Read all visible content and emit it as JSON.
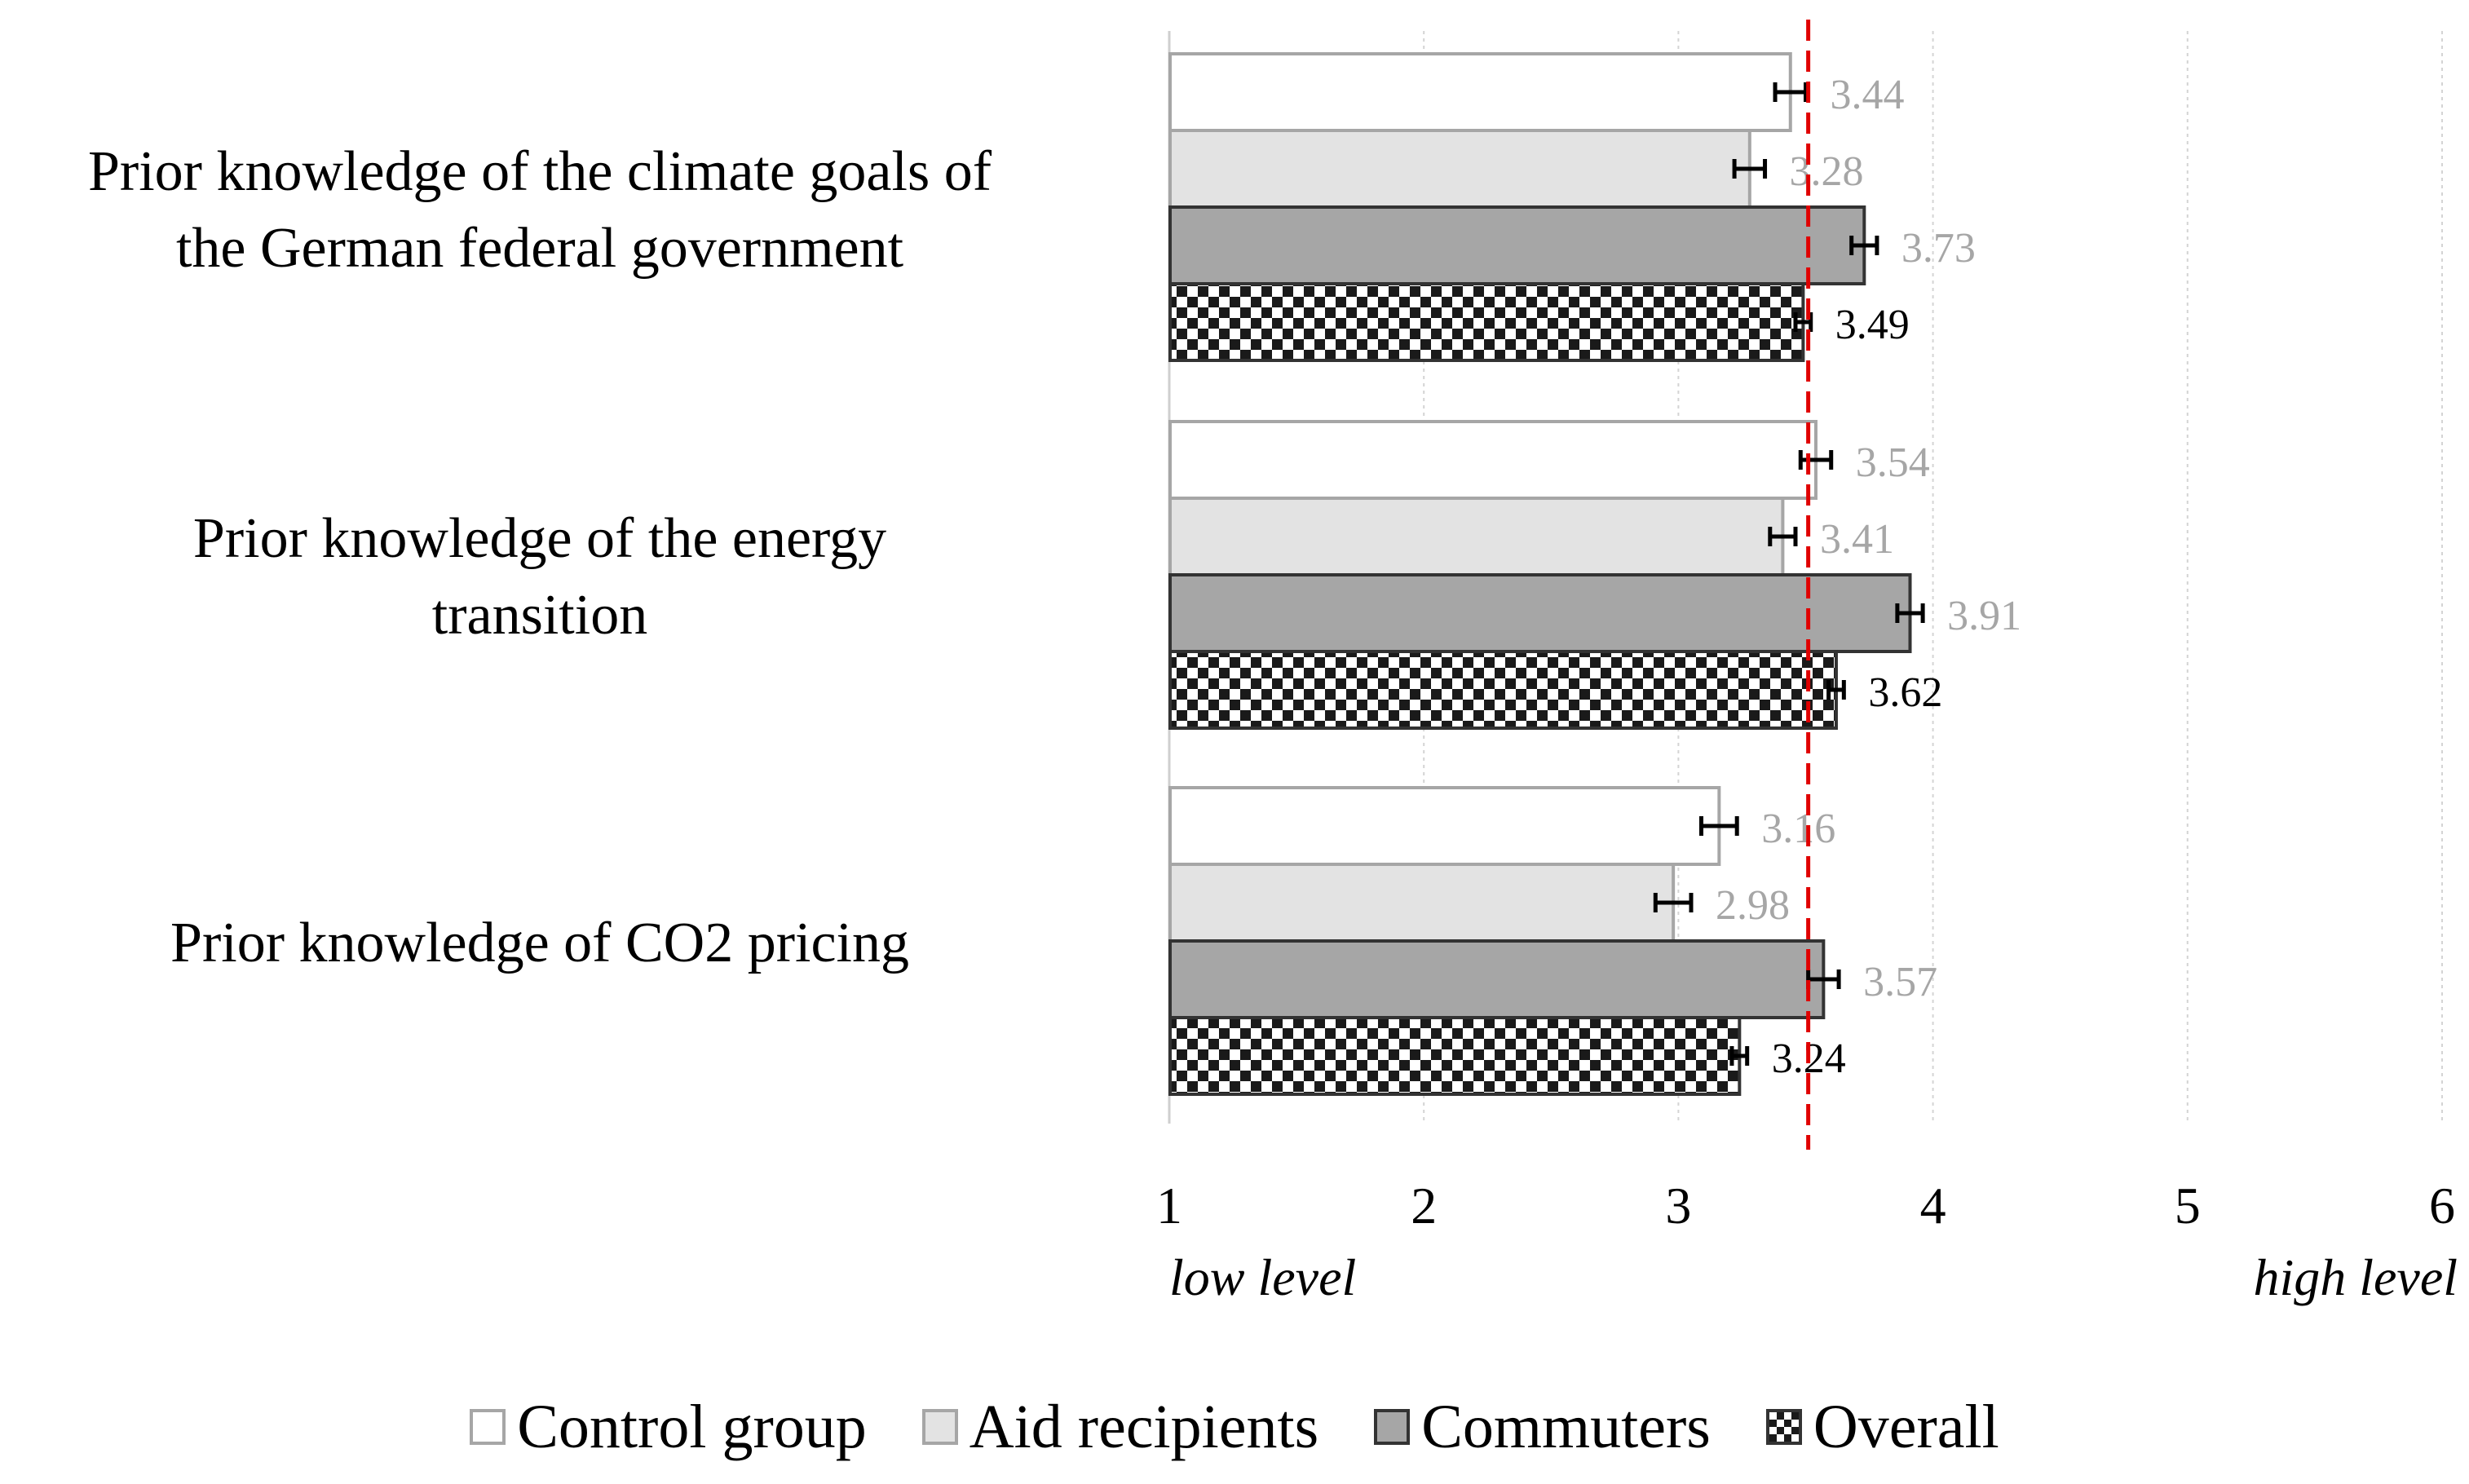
{
  "chart_data": {
    "type": "bar",
    "orientation": "horizontal",
    "categories": [
      {
        "lines": [
          "Prior knowledge of the climate goals of",
          "the German federal government"
        ]
      },
      {
        "lines": [
          "Prior knowledge of the energy",
          "transition"
        ]
      },
      {
        "lines": [
          "Prior knowledge of CO2 pricing"
        ]
      }
    ],
    "series": [
      {
        "name": "Control group",
        "fill": "#ffffff",
        "stroke": "#a6a6a6",
        "label_color": "#a6a6a6",
        "pattern": "none",
        "values": [
          3.44,
          3.54,
          3.16
        ],
        "labels": [
          "3.44",
          "3.54",
          "3.16"
        ],
        "error": [
          0.06,
          0.06,
          0.07
        ]
      },
      {
        "name": "Aid recipients",
        "fill": "#e3e3e3",
        "stroke": "#a6a6a6",
        "label_color": "#a6a6a6",
        "pattern": "none",
        "values": [
          3.28,
          3.41,
          2.98
        ],
        "labels": [
          "3.28",
          "3.41",
          "2.98"
        ],
        "error": [
          0.06,
          0.05,
          0.07
        ]
      },
      {
        "name": "Commuters",
        "fill": "#a6a6a6",
        "stroke": "#333333",
        "label_color": "#a6a6a6",
        "pattern": "none",
        "values": [
          3.73,
          3.91,
          3.57
        ],
        "labels": [
          "3.73",
          "3.91",
          "3.57"
        ],
        "error": [
          0.05,
          0.05,
          0.06
        ]
      },
      {
        "name": "Overall",
        "fill": "#ffffff",
        "stroke": "#333333",
        "label_color": "#000000",
        "pattern": "checker",
        "values": [
          3.49,
          3.62,
          3.24
        ],
        "labels": [
          "3.49",
          "3.62",
          "3.24"
        ],
        "error": [
          0.03,
          0.03,
          0.03
        ]
      }
    ],
    "xlim": [
      1,
      6
    ],
    "xticks": [
      "1",
      "2",
      "3",
      "4",
      "5",
      "6"
    ],
    "x_low_caption": "low level",
    "x_high_caption": "high level",
    "reference_line": {
      "value": 3.51,
      "color": "#e00000",
      "style": "dashed"
    },
    "grid": "vertical dotted",
    "legend_position": "bottom"
  }
}
